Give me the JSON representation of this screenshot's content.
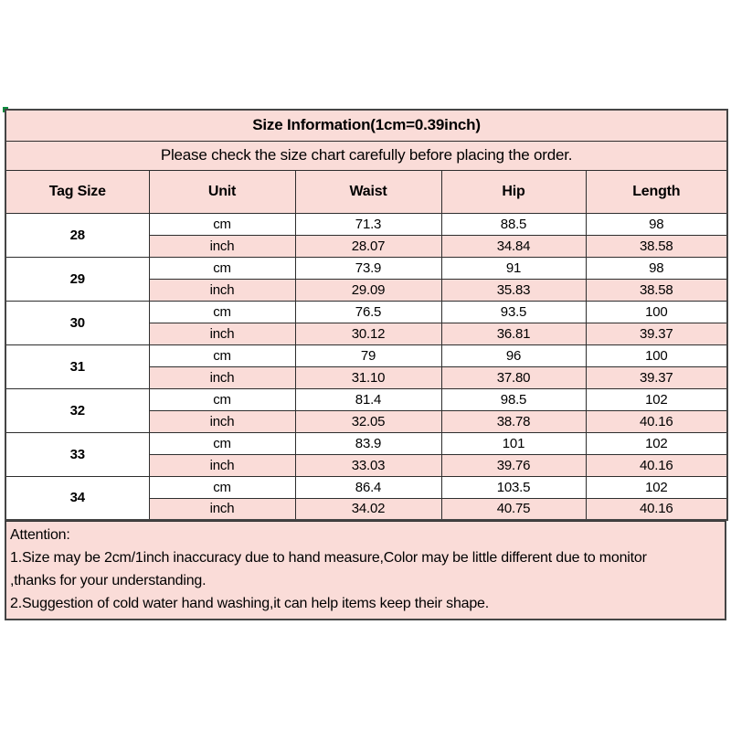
{
  "title": "Size Information(1cm=0.39inch)",
  "subtitle": "Please check the size chart carefully before placing the order.",
  "columns": [
    "Tag Size",
    "Unit",
    "Waist",
    "Hip",
    "Length"
  ],
  "unit_labels": {
    "cm": "cm",
    "inch": "inch"
  },
  "sizes": [
    {
      "tag": "28",
      "cm": [
        "71.3",
        "88.5",
        "98"
      ],
      "inch": [
        "28.07",
        "34.84",
        "38.58"
      ]
    },
    {
      "tag": "29",
      "cm": [
        "73.9",
        "91",
        "98"
      ],
      "inch": [
        "29.09",
        "35.83",
        "38.58"
      ]
    },
    {
      "tag": "30",
      "cm": [
        "76.5",
        "93.5",
        "100"
      ],
      "inch": [
        "30.12",
        "36.81",
        "39.37"
      ]
    },
    {
      "tag": "31",
      "cm": [
        "79",
        "96",
        "100"
      ],
      "inch": [
        "31.10",
        "37.80",
        "39.37"
      ]
    },
    {
      "tag": "32",
      "cm": [
        "81.4",
        "98.5",
        "102"
      ],
      "inch": [
        "32.05",
        "38.78",
        "40.16"
      ]
    },
    {
      "tag": "33",
      "cm": [
        "83.9",
        "101",
        "102"
      ],
      "inch": [
        "33.03",
        "39.76",
        "40.16"
      ]
    },
    {
      "tag": "34",
      "cm": [
        "86.4",
        "103.5",
        "102"
      ],
      "inch": [
        "34.02",
        "40.75",
        "40.16"
      ]
    }
  ],
  "attention": {
    "heading": "Attention:",
    "lines": [
      "1.Size may be 2cm/1inch inaccuracy due to hand measure,Color may be little different due to monitor",
      ",thanks for your understanding.",
      "2.Suggestion of cold water hand washing,it can help items keep their shape."
    ]
  },
  "colors": {
    "pink": "#fadcd8",
    "border": "#454545",
    "text": "#000000"
  },
  "chart_data": {
    "type": "table",
    "title": "Size Information(1cm=0.39inch)",
    "columns": [
      "Tag Size",
      "Unit",
      "Waist",
      "Hip",
      "Length"
    ],
    "rows": [
      [
        "28",
        "cm",
        "71.3",
        "88.5",
        "98"
      ],
      [
        "28",
        "inch",
        "28.07",
        "34.84",
        "38.58"
      ],
      [
        "29",
        "cm",
        "73.9",
        "91",
        "98"
      ],
      [
        "29",
        "inch",
        "29.09",
        "35.83",
        "38.58"
      ],
      [
        "30",
        "cm",
        "76.5",
        "93.5",
        "100"
      ],
      [
        "30",
        "inch",
        "30.12",
        "36.81",
        "39.37"
      ],
      [
        "31",
        "cm",
        "79",
        "96",
        "100"
      ],
      [
        "31",
        "inch",
        "31.10",
        "37.80",
        "39.37"
      ],
      [
        "32",
        "cm",
        "81.4",
        "98.5",
        "102"
      ],
      [
        "32",
        "inch",
        "32.05",
        "38.78",
        "40.16"
      ],
      [
        "33",
        "cm",
        "83.9",
        "101",
        "102"
      ],
      [
        "33",
        "inch",
        "33.03",
        "39.76",
        "40.16"
      ],
      [
        "34",
        "cm",
        "86.4",
        "103.5",
        "102"
      ],
      [
        "34",
        "inch",
        "34.02",
        "40.75",
        "40.16"
      ]
    ]
  }
}
